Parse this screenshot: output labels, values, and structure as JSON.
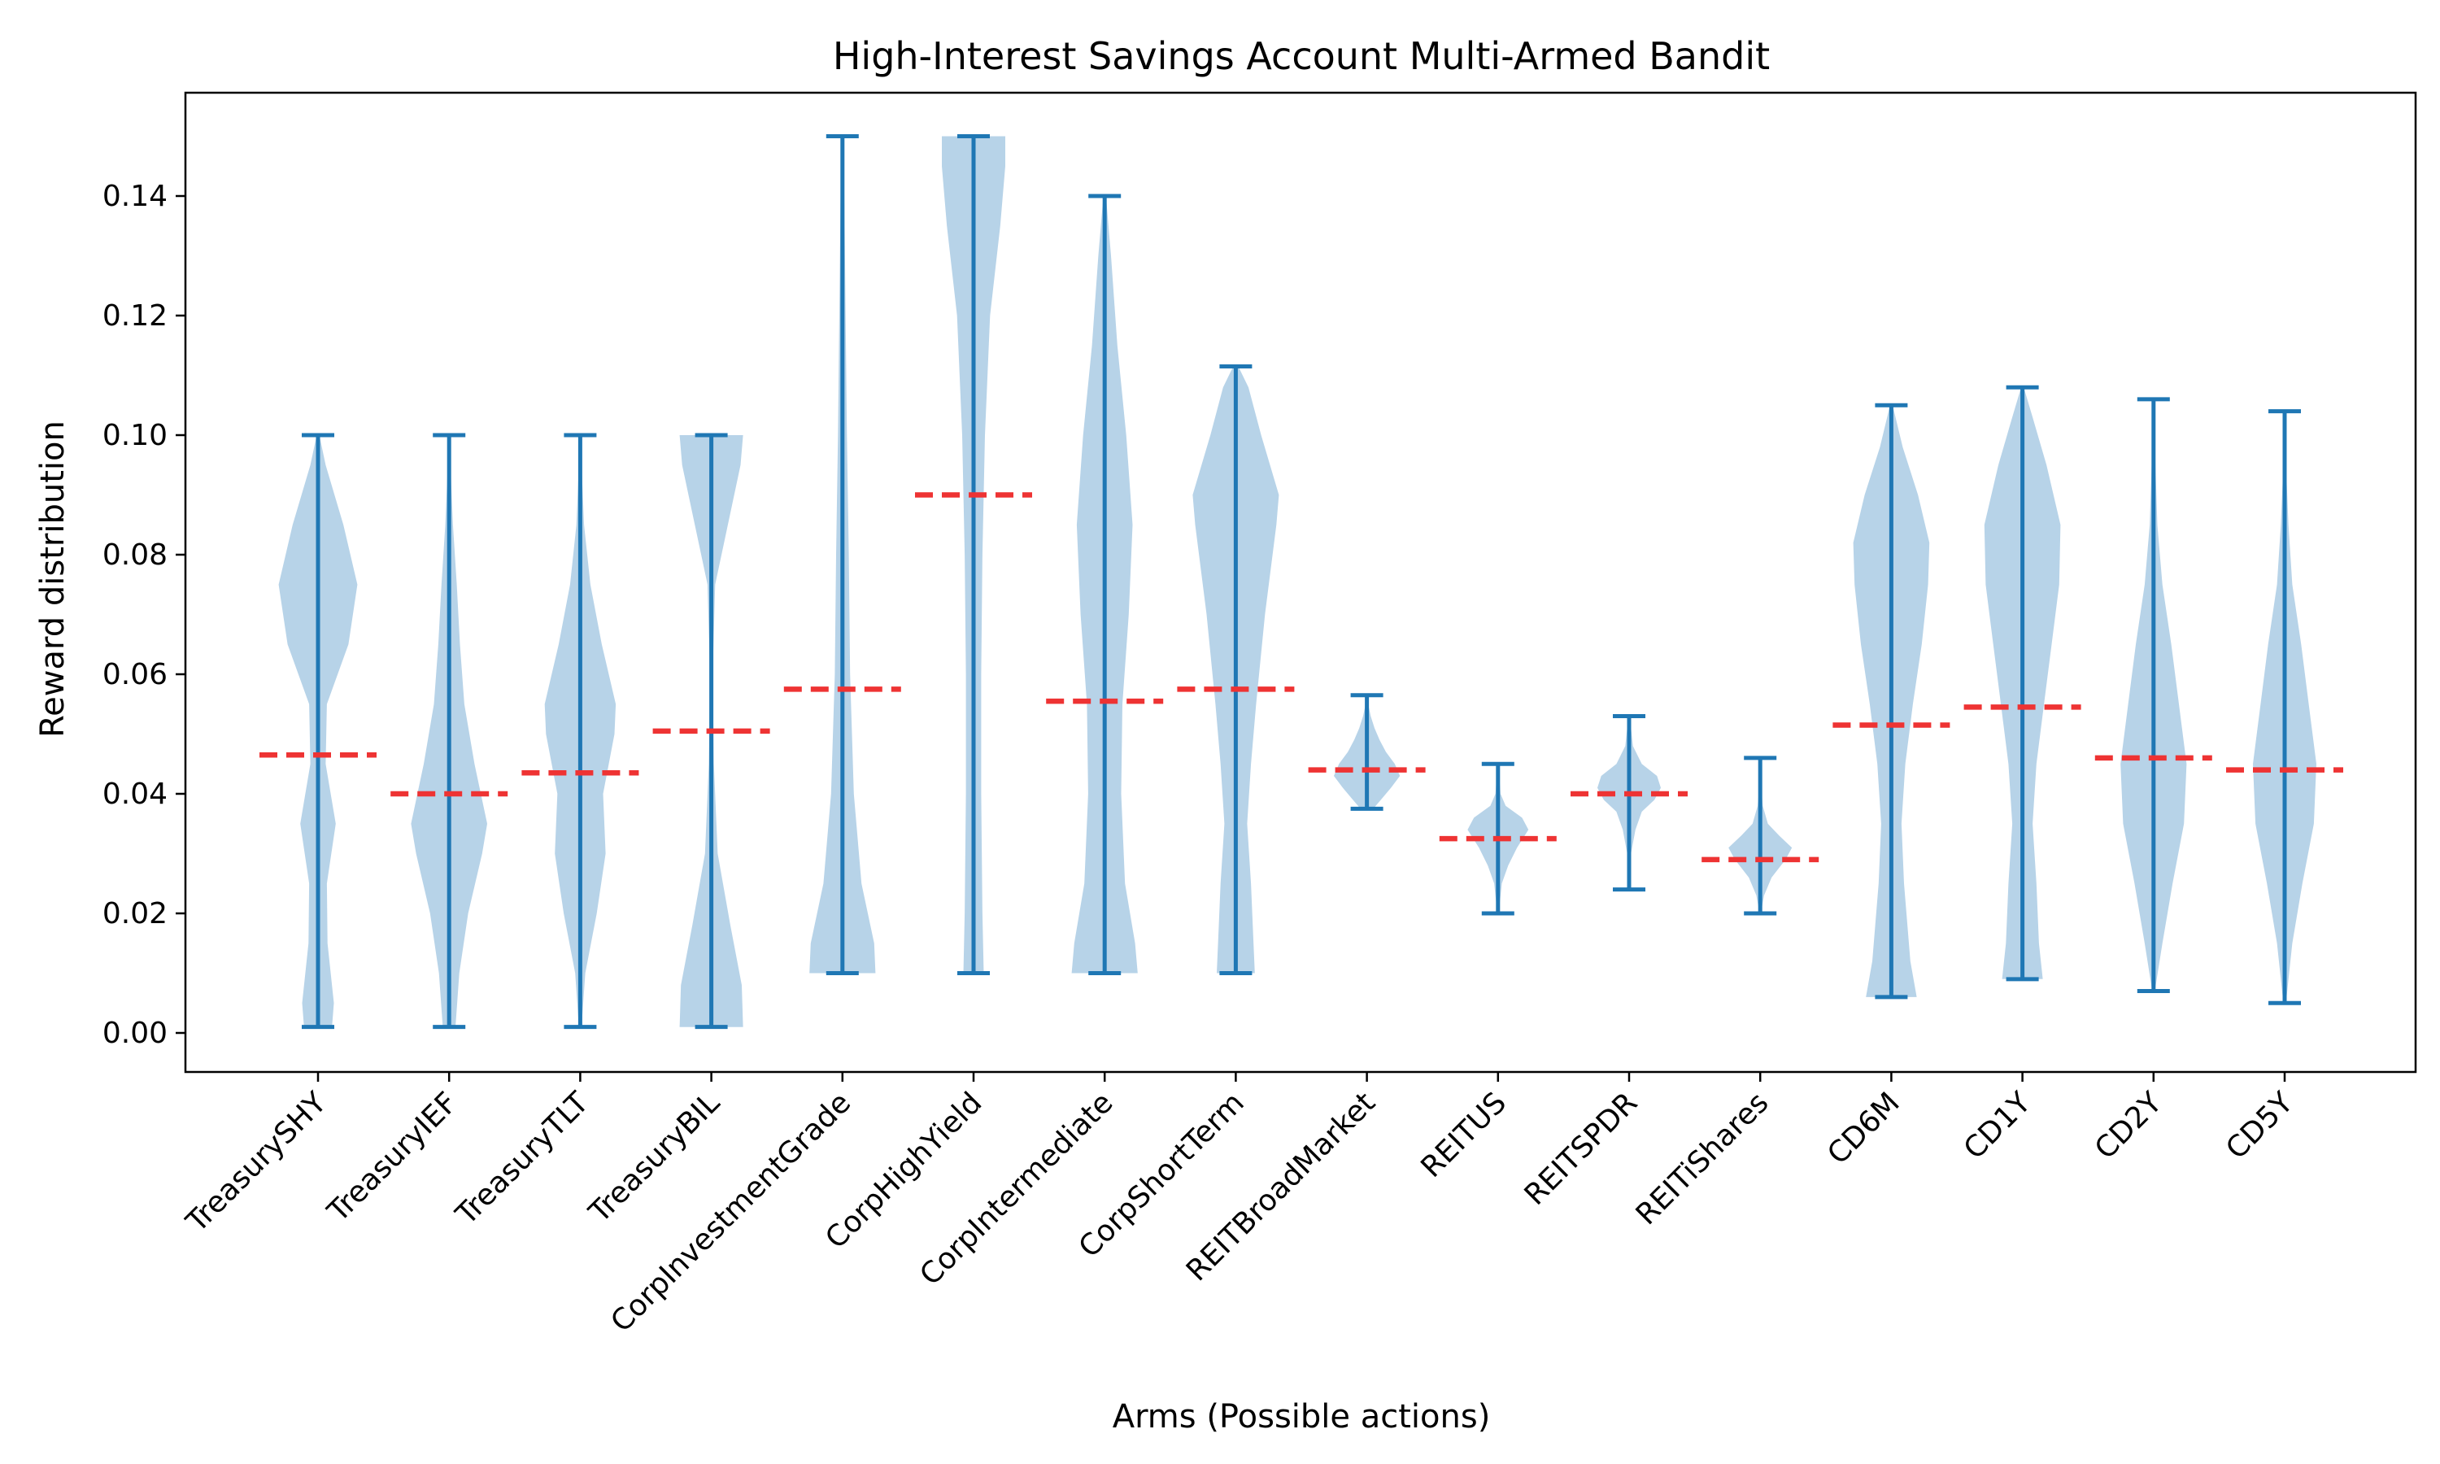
{
  "chart_data": {
    "type": "violin",
    "title": "High-Interest Savings Account Multi-Armed Bandit",
    "xlabel": "Arms (Possible actions)",
    "ylabel": "Reward distribution",
    "ylim": [
      -0.0065,
      0.158
    ],
    "yticks": [
      0.0,
      0.02,
      0.04,
      0.06,
      0.08,
      0.1,
      0.12,
      0.14
    ],
    "ytick_labels": [
      "0.00",
      "0.02",
      "0.04",
      "0.06",
      "0.08",
      "0.10",
      "0.12",
      "0.14"
    ],
    "grid": false,
    "colors": {
      "body": "#b7d3e8",
      "line": "#1f77b4",
      "mean": "#ee3333"
    },
    "categories": [
      "TreasurySHY",
      "TreasuryIEF",
      "TreasuryTLT",
      "TreasuryBIL",
      "CorpInvestmentGrade",
      "CorpHighYield",
      "CorpIntermediate",
      "CorpShortTerm",
      "REITBroadMarket",
      "REITUS",
      "REITSPDR",
      "REITiShares",
      "CD6M",
      "CD1Y",
      "CD2Y",
      "CD5Y"
    ],
    "series": [
      {
        "min": 0.001,
        "max": 0.1,
        "mean": 0.0465,
        "profile": [
          [
            0.001,
            0.22
          ],
          [
            0.005,
            0.25
          ],
          [
            0.015,
            0.15
          ],
          [
            0.025,
            0.14
          ],
          [
            0.035,
            0.28
          ],
          [
            0.045,
            0.12
          ],
          [
            0.055,
            0.14
          ],
          [
            0.065,
            0.48
          ],
          [
            0.075,
            0.62
          ],
          [
            0.085,
            0.4
          ],
          [
            0.095,
            0.12
          ],
          [
            0.1,
            0.02
          ]
        ]
      },
      {
        "min": 0.001,
        "max": 0.1,
        "mean": 0.04,
        "profile": [
          [
            0.001,
            0.1
          ],
          [
            0.01,
            0.16
          ],
          [
            0.02,
            0.3
          ],
          [
            0.03,
            0.52
          ],
          [
            0.035,
            0.6
          ],
          [
            0.045,
            0.4
          ],
          [
            0.055,
            0.24
          ],
          [
            0.065,
            0.17
          ],
          [
            0.075,
            0.12
          ],
          [
            0.085,
            0.06
          ],
          [
            0.095,
            0.02
          ],
          [
            0.1,
            0.0
          ]
        ]
      },
      {
        "min": 0.001,
        "max": 0.1,
        "mean": 0.0435,
        "profile": [
          [
            0.001,
            0.02
          ],
          [
            0.01,
            0.08
          ],
          [
            0.02,
            0.26
          ],
          [
            0.03,
            0.4
          ],
          [
            0.04,
            0.36
          ],
          [
            0.05,
            0.54
          ],
          [
            0.055,
            0.56
          ],
          [
            0.065,
            0.34
          ],
          [
            0.075,
            0.16
          ],
          [
            0.085,
            0.06
          ],
          [
            0.095,
            0.02
          ],
          [
            0.1,
            0.0
          ]
        ]
      },
      {
        "min": 0.001,
        "max": 0.1,
        "mean": 0.0505,
        "profile": [
          [
            0.001,
            0.5
          ],
          [
            0.008,
            0.48
          ],
          [
            0.018,
            0.3
          ],
          [
            0.03,
            0.1
          ],
          [
            0.045,
            0.04
          ],
          [
            0.06,
            0.02
          ],
          [
            0.075,
            0.06
          ],
          [
            0.085,
            0.26
          ],
          [
            0.095,
            0.46
          ],
          [
            0.1,
            0.5
          ]
        ]
      },
      {
        "min": 0.01,
        "max": 0.15,
        "mean": 0.0575,
        "profile": [
          [
            0.01,
            0.52
          ],
          [
            0.015,
            0.5
          ],
          [
            0.025,
            0.3
          ],
          [
            0.04,
            0.18
          ],
          [
            0.06,
            0.12
          ],
          [
            0.08,
            0.1
          ],
          [
            0.1,
            0.07
          ],
          [
            0.12,
            0.05
          ],
          [
            0.14,
            0.03
          ],
          [
            0.15,
            0.01
          ]
        ]
      },
      {
        "min": 0.01,
        "max": 0.15,
        "mean": 0.09,
        "profile": [
          [
            0.01,
            0.16
          ],
          [
            0.02,
            0.14
          ],
          [
            0.04,
            0.12
          ],
          [
            0.06,
            0.12
          ],
          [
            0.08,
            0.14
          ],
          [
            0.1,
            0.18
          ],
          [
            0.12,
            0.26
          ],
          [
            0.135,
            0.42
          ],
          [
            0.145,
            0.5
          ],
          [
            0.15,
            0.5
          ]
        ]
      },
      {
        "min": 0.01,
        "max": 0.14,
        "mean": 0.0555,
        "profile": [
          [
            0.01,
            0.52
          ],
          [
            0.015,
            0.48
          ],
          [
            0.025,
            0.32
          ],
          [
            0.04,
            0.26
          ],
          [
            0.055,
            0.28
          ],
          [
            0.07,
            0.38
          ],
          [
            0.085,
            0.44
          ],
          [
            0.1,
            0.34
          ],
          [
            0.115,
            0.2
          ],
          [
            0.13,
            0.1
          ],
          [
            0.14,
            0.02
          ]
        ]
      },
      {
        "min": 0.01,
        "max": 0.1115,
        "mean": 0.0575,
        "profile": [
          [
            0.01,
            0.3
          ],
          [
            0.015,
            0.28
          ],
          [
            0.025,
            0.24
          ],
          [
            0.035,
            0.18
          ],
          [
            0.045,
            0.24
          ],
          [
            0.055,
            0.32
          ],
          [
            0.07,
            0.46
          ],
          [
            0.085,
            0.64
          ],
          [
            0.09,
            0.68
          ],
          [
            0.1,
            0.4
          ],
          [
            0.108,
            0.2
          ],
          [
            0.1115,
            0.04
          ]
        ]
      },
      {
        "min": 0.0375,
        "max": 0.0565,
        "mean": 0.044,
        "profile": [
          [
            0.0375,
            0.1
          ],
          [
            0.039,
            0.22
          ],
          [
            0.041,
            0.38
          ],
          [
            0.043,
            0.52
          ],
          [
            0.045,
            0.44
          ],
          [
            0.047,
            0.3
          ],
          [
            0.049,
            0.2
          ],
          [
            0.051,
            0.12
          ],
          [
            0.053,
            0.06
          ],
          [
            0.055,
            0.02
          ],
          [
            0.0565,
            0.01
          ]
        ]
      },
      {
        "min": 0.02,
        "max": 0.045,
        "mean": 0.0325,
        "profile": [
          [
            0.02,
            0.01
          ],
          [
            0.025,
            0.06
          ],
          [
            0.028,
            0.16
          ],
          [
            0.031,
            0.3
          ],
          [
            0.034,
            0.48
          ],
          [
            0.036,
            0.38
          ],
          [
            0.038,
            0.12
          ],
          [
            0.04,
            0.04
          ],
          [
            0.043,
            0.02
          ],
          [
            0.045,
            0.01
          ]
        ]
      },
      {
        "min": 0.024,
        "max": 0.053,
        "mean": 0.04,
        "profile": [
          [
            0.024,
            0.01
          ],
          [
            0.03,
            0.03
          ],
          [
            0.034,
            0.1
          ],
          [
            0.037,
            0.2
          ],
          [
            0.039,
            0.4
          ],
          [
            0.041,
            0.5
          ],
          [
            0.043,
            0.44
          ],
          [
            0.045,
            0.2
          ],
          [
            0.048,
            0.06
          ],
          [
            0.053,
            0.01
          ]
        ]
      },
      {
        "min": 0.02,
        "max": 0.046,
        "mean": 0.029,
        "profile": [
          [
            0.02,
            0.01
          ],
          [
            0.023,
            0.06
          ],
          [
            0.026,
            0.18
          ],
          [
            0.029,
            0.4
          ],
          [
            0.031,
            0.5
          ],
          [
            0.033,
            0.3
          ],
          [
            0.035,
            0.12
          ],
          [
            0.038,
            0.04
          ],
          [
            0.042,
            0.01
          ],
          [
            0.046,
            0.0
          ]
        ]
      },
      {
        "min": 0.006,
        "max": 0.105,
        "mean": 0.0515,
        "profile": [
          [
            0.006,
            0.4
          ],
          [
            0.012,
            0.3
          ],
          [
            0.025,
            0.2
          ],
          [
            0.035,
            0.16
          ],
          [
            0.045,
            0.22
          ],
          [
            0.055,
            0.34
          ],
          [
            0.065,
            0.48
          ],
          [
            0.075,
            0.58
          ],
          [
            0.082,
            0.6
          ],
          [
            0.09,
            0.42
          ],
          [
            0.098,
            0.18
          ],
          [
            0.105,
            0.02
          ]
        ]
      },
      {
        "min": 0.009,
        "max": 0.108,
        "mean": 0.0545,
        "profile": [
          [
            0.009,
            0.32
          ],
          [
            0.015,
            0.26
          ],
          [
            0.025,
            0.22
          ],
          [
            0.035,
            0.16
          ],
          [
            0.045,
            0.22
          ],
          [
            0.055,
            0.34
          ],
          [
            0.065,
            0.46
          ],
          [
            0.075,
            0.58
          ],
          [
            0.085,
            0.6
          ],
          [
            0.095,
            0.38
          ],
          [
            0.103,
            0.16
          ],
          [
            0.108,
            0.02
          ]
        ]
      },
      {
        "min": 0.007,
        "max": 0.106,
        "mean": 0.046,
        "profile": [
          [
            0.007,
            0.02
          ],
          [
            0.015,
            0.14
          ],
          [
            0.025,
            0.3
          ],
          [
            0.035,
            0.48
          ],
          [
            0.045,
            0.52
          ],
          [
            0.055,
            0.4
          ],
          [
            0.065,
            0.28
          ],
          [
            0.075,
            0.14
          ],
          [
            0.085,
            0.06
          ],
          [
            0.095,
            0.03
          ],
          [
            0.106,
            0.01
          ]
        ]
      },
      {
        "min": 0.005,
        "max": 0.104,
        "mean": 0.044,
        "profile": [
          [
            0.005,
            0.02
          ],
          [
            0.015,
            0.12
          ],
          [
            0.025,
            0.28
          ],
          [
            0.035,
            0.46
          ],
          [
            0.045,
            0.5
          ],
          [
            0.055,
            0.38
          ],
          [
            0.065,
            0.26
          ],
          [
            0.075,
            0.12
          ],
          [
            0.085,
            0.06
          ],
          [
            0.095,
            0.02
          ],
          [
            0.104,
            0.01
          ]
        ]
      }
    ]
  }
}
